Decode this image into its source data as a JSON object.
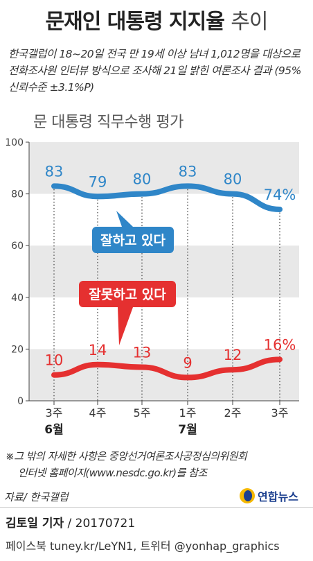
{
  "header": {
    "title_bold": "문재인 대통령 지지율",
    "title_light": "추이",
    "subtitle": "한국갤럽이 18~20일 전국 만 19세 이상 남녀 1,012명을 대상으로 전화조사원 인터뷰 방식으로 조사해 21일 밝힌 여론조사 결과 (95% 신뢰수준 ±3.1%P)"
  },
  "colors": {
    "positive": "#2f86c8",
    "negative": "#e53030",
    "band": "#e8e8e8"
  },
  "chart_data": {
    "type": "line",
    "title": "문 대통령 직무수행 평가",
    "ylim": [
      0,
      100
    ],
    "yticks": [
      0,
      20,
      40,
      60,
      80,
      100
    ],
    "categories": [
      "3주",
      "4주",
      "5주",
      "1주",
      "2주",
      "3주"
    ],
    "month_labels": [
      {
        "index": 0,
        "label": "6월"
      },
      {
        "index": 3,
        "label": "7월"
      }
    ],
    "series": [
      {
        "name": "잘하고 있다",
        "color": "#2f86c8",
        "values": [
          83,
          79,
          80,
          83,
          80,
          74
        ],
        "labels": [
          "83",
          "79",
          "80",
          "83",
          "80",
          "74%"
        ]
      },
      {
        "name": "잘못하고 있다",
        "color": "#e53030",
        "values": [
          10,
          14,
          13,
          9,
          12,
          16
        ],
        "labels": [
          "10",
          "14",
          "13",
          "9",
          "12",
          "16%"
        ]
      }
    ],
    "grid": "alternating bands",
    "legend": "callout labels"
  },
  "footer": {
    "note_line1": "※그 밖의 자세한 사항은 중앙선거여론조사공정심의위원회",
    "note_line2": "인터넷 홈페이지(www.nesdc.go.kr)를 참조",
    "source": "자료/ 한국갤럽",
    "logo_text": "연합뉴스",
    "reporter": "김토일 기자",
    "date": "/ 20170721",
    "social": "페이스북 tuney.kr/LeYN1, 트위터 @yonhap_graphics"
  }
}
